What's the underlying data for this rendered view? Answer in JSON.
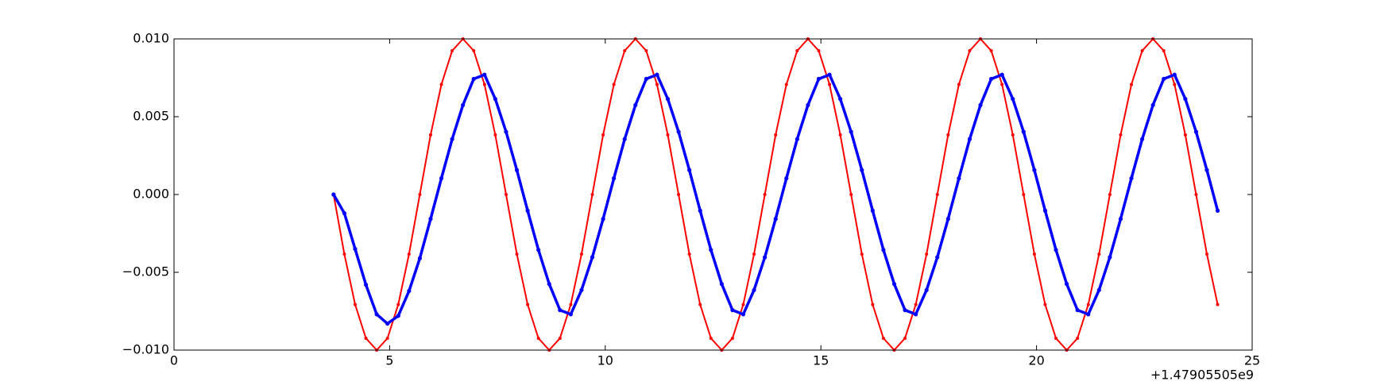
{
  "chart_data": {
    "type": "scatter",
    "x": [
      3.7,
      3.95,
      4.2,
      4.45,
      4.7,
      4.95,
      5.2,
      5.45,
      5.7,
      5.95,
      6.2,
      6.45,
      6.7,
      6.95,
      7.2,
      7.45,
      7.7,
      7.95,
      8.2,
      8.45,
      8.7,
      8.95,
      9.2,
      9.45,
      9.7,
      9.95,
      10.2,
      10.45,
      10.7,
      10.95,
      11.2,
      11.45,
      11.7,
      11.95,
      12.2,
      12.45,
      12.7,
      12.95,
      13.2,
      13.45,
      13.7,
      13.95,
      14.2,
      14.45,
      14.7,
      14.95,
      15.2,
      15.45,
      15.7,
      15.95,
      16.2,
      16.45,
      16.7,
      16.95,
      17.2,
      17.45,
      17.7,
      17.95,
      18.2,
      18.45,
      18.7,
      18.95,
      19.2,
      19.45,
      19.7,
      19.95,
      20.2,
      20.45,
      20.7,
      20.95,
      21.2,
      21.45,
      21.7,
      21.95,
      22.2,
      22.45,
      22.7,
      22.95,
      23.2,
      23.45,
      23.7,
      23.95,
      24.2
    ],
    "series": [
      {
        "color": "#ff0000",
        "values": [
          0,
          -0.00383,
          -0.00707,
          -0.00924,
          -0.01,
          -0.00924,
          -0.00707,
          -0.00383,
          0,
          0.00383,
          0.00707,
          0.00924,
          0.01,
          0.00924,
          0.00707,
          0.00383,
          0,
          -0.00383,
          -0.00707,
          -0.00924,
          -0.01,
          -0.00924,
          -0.00707,
          -0.00383,
          0,
          0.00383,
          0.00707,
          0.00924,
          0.01,
          0.00924,
          0.00707,
          0.00383,
          0,
          -0.00383,
          -0.00707,
          -0.00924,
          -0.01,
          -0.00924,
          -0.00707,
          -0.00383,
          0,
          0.00383,
          0.00707,
          0.00924,
          0.01,
          0.00924,
          0.00707,
          0.00383,
          0,
          -0.00383,
          -0.00707,
          -0.00924,
          -0.01,
          -0.00924,
          -0.00707,
          -0.00383,
          0,
          0.00383,
          0.00707,
          0.00924,
          0.01,
          0.00924,
          0.00707,
          0.00383,
          0,
          -0.00383,
          -0.00707,
          -0.00924,
          -0.01,
          -0.00924,
          -0.00707,
          -0.00383,
          0,
          0.00383,
          0.00707,
          0.00924,
          0.01,
          0.00924,
          0.00707,
          0.00383,
          0,
          -0.00383,
          -0.00707
        ]
      },
      {
        "color": "#0000ff",
        "values": [
          0,
          -0.0012,
          -0.0035,
          -0.0058,
          -0.0077,
          -0.0083,
          -0.0078,
          -0.0062,
          -0.0041,
          -0.00157,
          0.00104,
          0.00356,
          0.00575,
          0.00743,
          0.0077,
          0.00614,
          0.00403,
          0.00157,
          -0.00104,
          -0.00356,
          -0.00575,
          -0.00743,
          -0.0077,
          -0.00614,
          -0.00403,
          -0.00157,
          0.00104,
          0.00356,
          0.00575,
          0.00743,
          0.0077,
          0.00614,
          0.00403,
          0.00157,
          -0.00104,
          -0.00356,
          -0.00575,
          -0.00743,
          -0.0077,
          -0.00614,
          -0.00403,
          -0.00157,
          0.00104,
          0.00356,
          0.00575,
          0.00743,
          0.0077,
          0.00614,
          0.00403,
          0.00157,
          -0.00104,
          -0.00356,
          -0.00575,
          -0.00743,
          -0.0077,
          -0.00614,
          -0.00403,
          -0.00157,
          0.00104,
          0.00356,
          0.00575,
          0.00743,
          0.0077,
          0.00614,
          0.00403,
          0.00157,
          -0.00104,
          -0.00356,
          -0.00575,
          -0.00743,
          -0.0077,
          -0.00614,
          -0.00403,
          -0.00157,
          0.00104,
          0.00356,
          0.00575,
          0.00743,
          0.0077,
          0.00614,
          0.00403,
          0.00157,
          -0.00104
        ]
      }
    ],
    "xlim": [
      0,
      25
    ],
    "xticks": [
      0,
      5,
      10,
      15,
      20,
      25
    ],
    "x_offset_label": "+1.47905505e9",
    "ylim": [
      -0.01,
      0.01
    ],
    "yticks": [
      {
        "value": -0.01,
        "label": "−0.010"
      },
      {
        "value": -0.005,
        "label": "−0.005"
      },
      {
        "value": 0,
        "label": "0.000"
      },
      {
        "value": 0.005,
        "label": "0.005"
      },
      {
        "value": 0.01,
        "label": "0.010"
      }
    ]
  }
}
